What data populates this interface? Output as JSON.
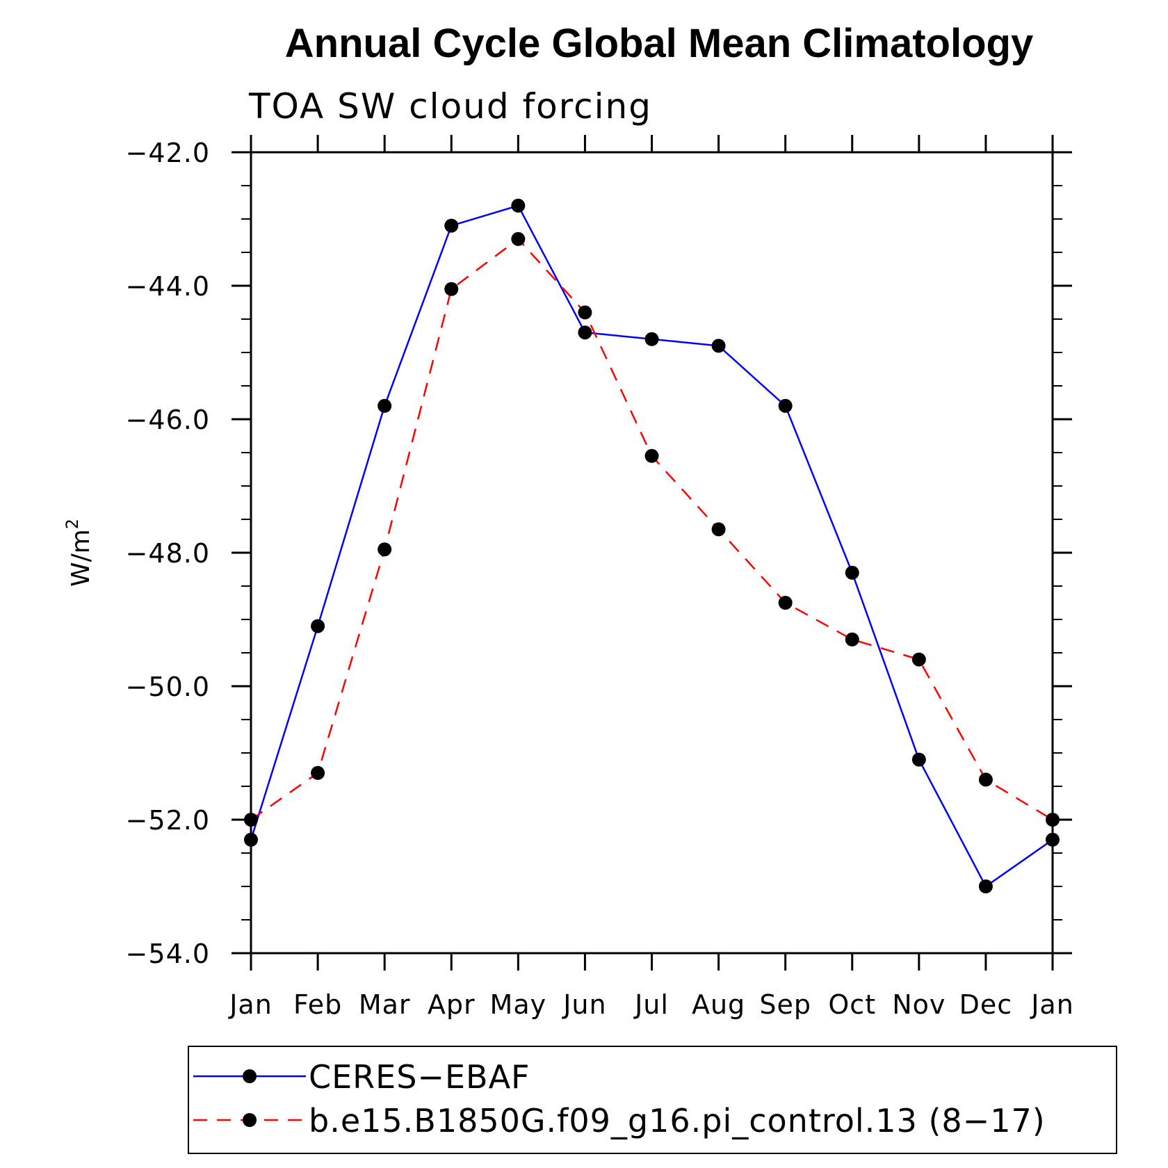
{
  "chart_data": {
    "type": "line",
    "title": "Annual Cycle Global Mean Climatology",
    "subtitle": "TOA SW cloud forcing",
    "xlabel": "",
    "ylabel": "W/m",
    "ylabel_superscript": "2",
    "categories": [
      "Jan",
      "Feb",
      "Mar",
      "Apr",
      "May",
      "Jun",
      "Jul",
      "Aug",
      "Sep",
      "Oct",
      "Nov",
      "Dec",
      "Jan"
    ],
    "ylim": [
      -54.0,
      -42.0
    ],
    "yticks": [
      -42.0,
      -44.0,
      -46.0,
      -48.0,
      -50.0,
      -52.0,
      -54.0
    ],
    "ytick_labels": [
      "−42.0",
      "−44.0",
      "−46.0",
      "−48.0",
      "−50.0",
      "−52.0",
      "−54.0"
    ],
    "grid": false,
    "legend_position": "bottom",
    "series": [
      {
        "name": "CERES−EBAF",
        "color": "#0000ff",
        "dash": "solid",
        "marker": "filled-circle",
        "values": [
          -52.3,
          -49.1,
          -45.8,
          -43.1,
          -42.8,
          -44.7,
          -44.8,
          -44.9,
          -45.8,
          -48.3,
          -51.1,
          -53.0,
          -52.3
        ]
      },
      {
        "name": "b.e15.B1850G.f09_g16.pi_control.13 (8−17)",
        "color": "#ff0000",
        "dash": "dashed",
        "marker": "filled-circle",
        "values": [
          -52.0,
          -51.3,
          -47.95,
          -44.05,
          -43.3,
          -44.4,
          -46.55,
          -47.65,
          -48.75,
          -49.3,
          -49.6,
          -51.4,
          -52.0
        ]
      }
    ]
  }
}
